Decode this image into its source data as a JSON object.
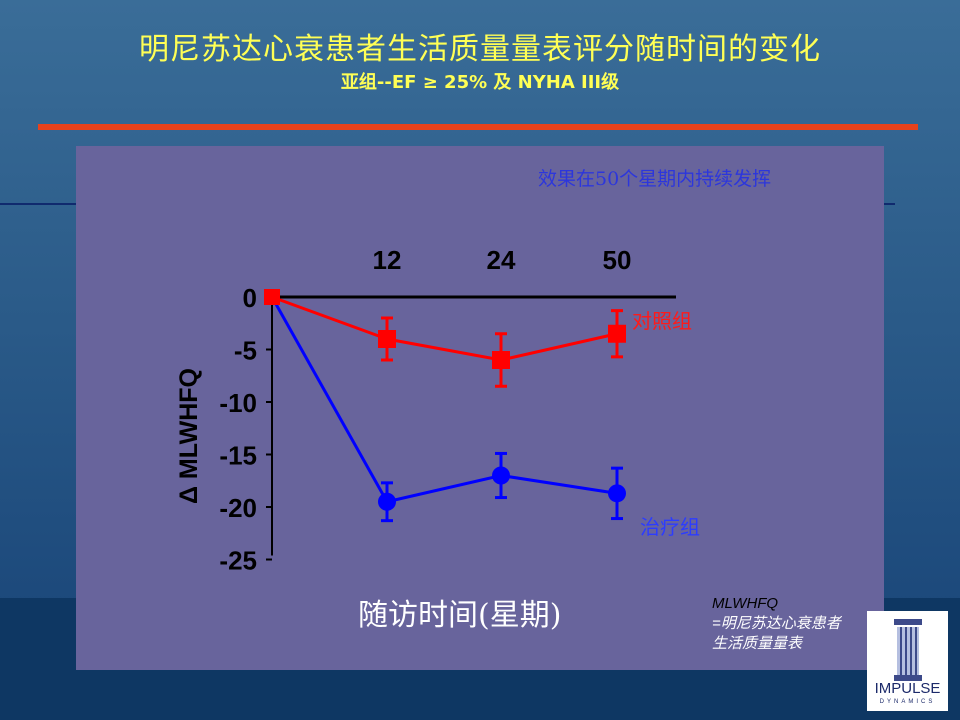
{
  "slide": {
    "title": "明尼苏达心衰患者生活质量量表评分随时间的变化",
    "subtitle": "亚组--EF ≥ 25% 及 NYHA III级",
    "annotation": "效果在50个星期内持续发挥",
    "footnote_line1": "MLWHFQ",
    "footnote_line2": "=明尼苏达心衰患者",
    "footnote_line3": "生活质量量表",
    "logo_name": "IMPULSE",
    "logo_sub": "DYNAMICS"
  },
  "chart_data": {
    "type": "line",
    "title": "",
    "xlabel": "随访时间(星期)",
    "ylabel": "Δ MLWHFQ",
    "x": [
      0,
      12,
      24,
      50
    ],
    "x_tick_labels": [
      "12",
      "24",
      "50"
    ],
    "y_tick_labels": [
      "0",
      "-5",
      "-10",
      "-15",
      "-20",
      "-25"
    ],
    "ylim": [
      -25,
      0
    ],
    "grid": false,
    "series": [
      {
        "name": "对照组",
        "color": "#ff0000",
        "marker": "square",
        "values": [
          0,
          -4,
          -6,
          -3.5
        ],
        "errors": [
          0,
          2,
          2.5,
          2.2
        ]
      },
      {
        "name": "治疗组",
        "color": "#0000ff",
        "marker": "circle",
        "values": [
          0,
          -19.5,
          -17,
          -18.7
        ],
        "errors": [
          0,
          1.8,
          2.1,
          2.4
        ]
      }
    ]
  },
  "colors": {
    "title": "#ffff55",
    "accent_rule": "#e8421c",
    "panel": "#68649c"
  }
}
